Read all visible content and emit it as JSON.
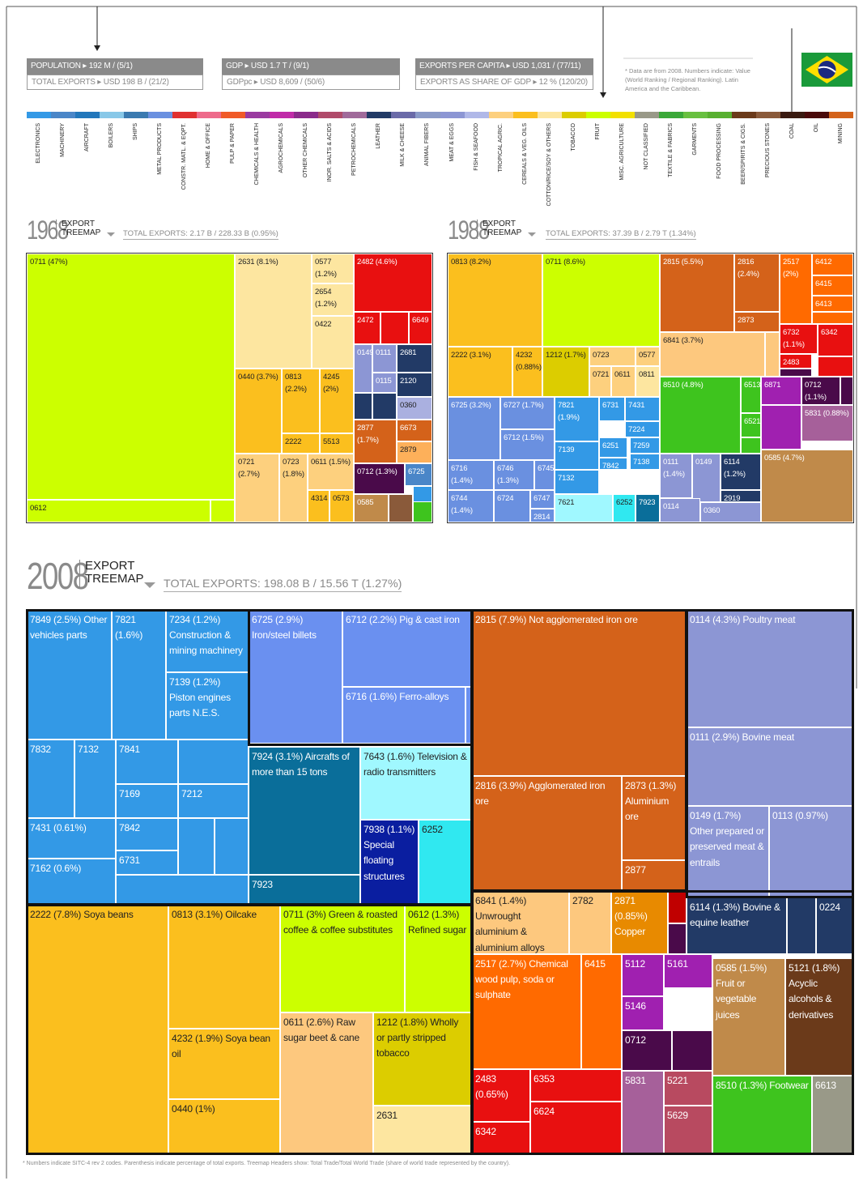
{
  "stats": [
    {
      "top": "POPULATION ▸ 192 M / (5/1)",
      "bottom": "TOTAL EXPORTS ▸ USD 198 B / (21/2)"
    },
    {
      "top": "GDP ▸ USD 1.7 T / (9/1)",
      "bottom": "GDPpc ▸ USD 8,609 / (50/6)"
    },
    {
      "top": "EXPORTS PER CAPITA ▸ USD 1,031 / (77/11)",
      "bottom": "EXPORTS AS SHARE OF GDP ▸ 12 % (120/20)"
    }
  ],
  "note": "* Data are from 2008. Numbers indicate: Value (World Ranking / Regional Ranking). Latin America and the Caribbean.",
  "legend": [
    {
      "name": "ELECTRONICS",
      "color": "#3399e6"
    },
    {
      "name": "MACHINERY",
      "color": "#4a86c8"
    },
    {
      "name": "AIRCRAFT",
      "color": "#2277bb"
    },
    {
      "name": "BOILERS",
      "color": "#88c8e8"
    },
    {
      "name": "SHIPS",
      "color": "#3a7ab0"
    },
    {
      "name": "METAL PRODUCTS",
      "color": "#6a90e0"
    },
    {
      "name": "CONSTR. MATL. & EQPT.",
      "color": "#e03030"
    },
    {
      "name": "HOME & OFFICE",
      "color": "#ee6a8a"
    },
    {
      "name": "PULP & PAPER",
      "color": "#f05a28"
    },
    {
      "name": "CHEMICALS & HEALTH",
      "color": "#9a3aa0"
    },
    {
      "name": "AGROCHEMICALS",
      "color": "#c02aa8"
    },
    {
      "name": "OTHER CHEMICALS",
      "color": "#8a2a8a"
    },
    {
      "name": "INOR. SALTS & ACIDS",
      "color": "#b04a6a"
    },
    {
      "name": "PETROCHEMICALS",
      "color": "#a06a9a"
    },
    {
      "name": "LEATHER",
      "color": "#223a66"
    },
    {
      "name": "MILK & CHEESE",
      "color": "#6a6aa8"
    },
    {
      "name": "ANIMAL FIBERS",
      "color": "#8a9ac8"
    },
    {
      "name": "MEAT & EGGS",
      "color": "#8c96d4"
    },
    {
      "name": "FISH & SEAFOOD",
      "color": "#b0b8e8"
    },
    {
      "name": "TROPICAL AGRIC.",
      "color": "#fdd07e"
    },
    {
      "name": "CEREALS & VEG. OILS",
      "color": "#fbbf1e"
    },
    {
      "name": "COTTON/RICE/SOY & OTHERS",
      "color": "#fde6a0"
    },
    {
      "name": "TOBACCO",
      "color": "#dccd00"
    },
    {
      "name": "FRUIT",
      "color": "#ccff00"
    },
    {
      "name": "MISC. AGRICULTURE",
      "color": "#f2e000"
    },
    {
      "name": "NOT CLASSIFIED",
      "color": "#999988"
    },
    {
      "name": "TEXTILE & FABRICS",
      "color": "#3aa838"
    },
    {
      "name": "GARMENTS",
      "color": "#68c040"
    },
    {
      "name": "FOOD PROCESSING",
      "color": "#58b030"
    },
    {
      "name": "BEER/SPIRITS & CIGS.",
      "color": "#6b3a1a"
    },
    {
      "name": "PRECIOUS STONES",
      "color": "#8a5a3a"
    },
    {
      "name": "COAL",
      "color": "#3a1a10"
    },
    {
      "name": "OIL",
      "color": "#4a0a0a"
    },
    {
      "name": "MINING",
      "color": "#d4621a"
    }
  ],
  "treemaps": [
    {
      "year": "1968",
      "header": [
        "EXPORT",
        "TREEMAP"
      ],
      "total": "TOTAL EXPORTS: 2.17 B / 228.33 B (0.95%)",
      "cells": [
        "0711 (47%)",
        "0612",
        "2631 (8.1%)",
        "0577 (1.2%)",
        "2654 (1.2%)",
        "0422",
        "2482 (4.6%)",
        "2472",
        "6649",
        "0149",
        "0111",
        "2681",
        "0115",
        "2120",
        "0360",
        "0440 (3.7%)",
        "0813 (2.2%)",
        "4245 (2%)",
        "2222",
        "5513",
        "0721 (2.7%)",
        "0723 (1.8%)",
        "0611 (1.5%)",
        "4314",
        "0573",
        "2877 (1.7%)",
        "6673",
        "2879",
        "0712 (1.3%)",
        "6725",
        "0585"
      ]
    },
    {
      "year": "1988",
      "header": [
        "EXPORT",
        "TREEMAP"
      ],
      "total": "TOTAL EXPORTS: 37.39 B / 2.79 T (1.34%)",
      "cells": [
        "0813 (8.2%)",
        "0711 (8.6%)",
        "2222 (3.1%)",
        "4232 (0.88%)",
        "1212 (1.7%)",
        "0723",
        "0577",
        "0721",
        "0611",
        "0811",
        "6725 (3.2%)",
        "6727 (1.7%)",
        "6712 (1.5%)",
        "6716 (1.4%)",
        "6746 (1.3%)",
        "6745",
        "6744 (1.4%)",
        "6724",
        "6747",
        "2814",
        "7821 (1.9%)",
        "6731",
        "7431",
        "7224",
        "7139",
        "6251",
        "7259",
        "7842",
        "7138",
        "7132",
        "7621",
        "6252",
        "7923",
        "2815 (5.5%)",
        "2816 (2.4%)",
        "2873",
        "6841 (3.7%)",
        "2517 (2%)",
        "6412",
        "6415",
        "6413",
        "6732 (1.1%)",
        "6342",
        "2483",
        "8510 (4.8%)",
        "6513",
        "6521",
        "6871",
        "0712 (1.1%)",
        "5831 (0.88%)",
        "0111 (1.4%)",
        "0149",
        "6114 (1.2%)",
        "2919",
        "0114",
        "0360",
        "0585 (4.7%)"
      ]
    },
    {
      "year": "2008",
      "header": [
        "EXPORT",
        "TREEMAP"
      ],
      "total": "TOTAL EXPORTS: 198.08 B / 15.56 T (1.27%)",
      "cells": [
        "7849 (2.5%) Other vehicles parts",
        "7821 (1.6%)",
        "7234 (1.2%) Construction & mining machinery",
        "7139 (1.2%) Piston engines parts N.E.S.",
        "7832",
        "7132",
        "7841",
        "7169",
        "7212",
        "7431 (0.61%)",
        "7842",
        "6731",
        "7162 (0.6%)",
        "6725 (2.9%) Iron/steel billets",
        "6712 (2.2%) Pig & cast iron",
        "6716 (1.6%) Ferro-alloys",
        "7924 (3.1%) Aircrafts of more than 15 tons",
        "7923",
        "7643 (1.6%) Television & radio transmitters",
        "7938 (1.1%) Special floating structures",
        "6252",
        "2222 (7.8%) Soya beans",
        "0813 (3.1%) Oilcake",
        "4232 (1.9%) Soya bean oil",
        "0440 (1%)",
        "0711 (3%) Green & roasted coffee & coffee substitutes",
        "0612 (1.3%) Refined sugar",
        "0611 (2.6%) Raw sugar beet & cane",
        "1212 (1.8%) Wholly or partly stripped tobacco",
        "2631",
        "2815 (7.9%) Not agglomerated iron ore",
        "2816 (3.9%) Agglomerated iron ore",
        "2873 (1.3%) Aluminium ore",
        "2877",
        "0114 (4.3%) Poultry meat",
        "0111 (2.9%) Bovine meat",
        "0149 (1.7%) Other prepared or preserved meat & entrails",
        "0113 (0.97%)",
        "6114 (1.3%) Bovine & equine leather",
        "0224",
        "6841 (1.4%) Unwrought aluminium & aluminium alloys",
        "2782",
        "2871 (0.85%) Copper",
        "2517 (2.7%) Chemical wood pulp, soda or sulphate",
        "6415",
        "2483 (0.65%)",
        "6342",
        "6353",
        "6624",
        "5112",
        "5161",
        "5146",
        "0712",
        "5831",
        "5221",
        "5629",
        "0585 (1.5%) Fruit or vegetable juices",
        "5121 (1.8%) Acyclic alcohols & derivatives",
        "8510 (1.3%) Footwear",
        "6613"
      ]
    }
  ],
  "footnote": "* Numbers indicate SITC-4 rev 2 codes. Parenthesis indicate percentage of total exports. Treemap Headers show: Total Trade/Total World Trade (share of world trade represented by the country)."
}
